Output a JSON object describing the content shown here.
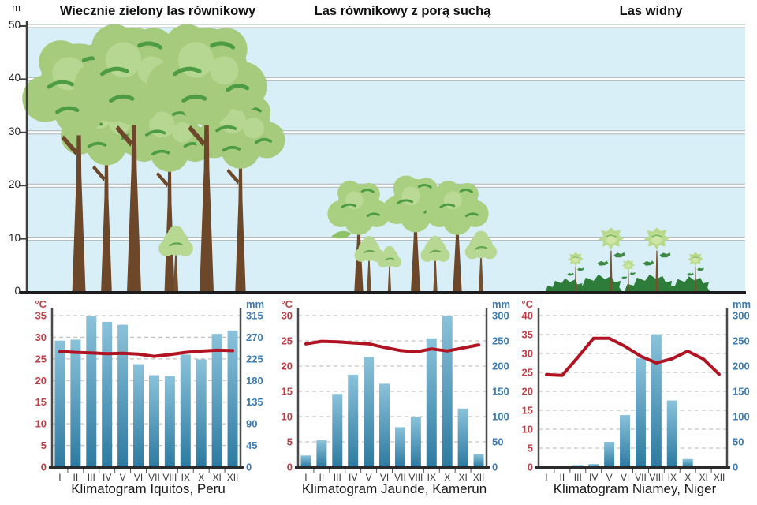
{
  "forest_profile": {
    "y_axis": {
      "unit": "m",
      "ticks": [
        50,
        40,
        30,
        20,
        10,
        0
      ]
    },
    "sections": [
      {
        "title": "Wiecznie zielony las równikowy"
      },
      {
        "title": "Las równikowy z porą suchą"
      },
      {
        "title": "Las widny"
      }
    ]
  },
  "chart_data": [
    {
      "type": "bar",
      "caption": "Klimatogram Iquitos, Peru",
      "months": [
        "I",
        "II",
        "III",
        "IV",
        "V",
        "VI",
        "VII",
        "VIII",
        "IX",
        "X",
        "XI",
        "XII"
      ],
      "temp_axis": {
        "label": "°C",
        "max": 35,
        "ticks": [
          35,
          30,
          25,
          20,
          15,
          10,
          5,
          0
        ]
      },
      "precip_axis": {
        "label": "mm",
        "max": 315,
        "ticks": [
          315,
          270,
          225,
          180,
          135,
          90,
          45,
          0
        ]
      },
      "series": [
        {
          "name": "precipitation_mm",
          "type": "bar",
          "values": [
            263,
            265,
            314,
            302,
            296,
            214,
            191,
            189,
            234,
            224,
            277,
            284
          ]
        },
        {
          "name": "temperature_c",
          "type": "line",
          "values": [
            26.7,
            26.5,
            26.4,
            26.2,
            26.3,
            26.1,
            25.6,
            26.0,
            26.5,
            26.8,
            27.0,
            26.9
          ]
        }
      ]
    },
    {
      "type": "bar",
      "caption": "Klimatogram Jaunde, Kamerun",
      "months": [
        "I",
        "II",
        "III",
        "IV",
        "V",
        "VI",
        "VII",
        "VIII",
        "IX",
        "X",
        "XI",
        "XII"
      ],
      "temp_axis": {
        "label": "°C",
        "max": 30,
        "ticks": [
          30,
          25,
          20,
          15,
          10,
          5,
          0
        ]
      },
      "precip_axis": {
        "label": "mm",
        "max": 300,
        "ticks": [
          300,
          250,
          200,
          150,
          100,
          50,
          0
        ]
      },
      "series": [
        {
          "name": "precipitation_mm",
          "type": "bar",
          "values": [
            23,
            53,
            145,
            183,
            218,
            165,
            79,
            100,
            255,
            300,
            116,
            25
          ]
        },
        {
          "name": "temperature_c",
          "type": "line",
          "values": [
            24.4,
            24.9,
            24.8,
            24.6,
            24.4,
            23.7,
            23.1,
            22.8,
            23.4,
            23.0,
            23.6,
            24.2
          ]
        }
      ]
    },
    {
      "type": "bar",
      "caption": "Klimatogram Niamey, Niger",
      "months": [
        "I",
        "II",
        "III",
        "IV",
        "V",
        "VI",
        "VII",
        "VIII",
        "IX",
        "X",
        "XI",
        "XII"
      ],
      "temp_axis": {
        "label": "°C",
        "max": 40,
        "ticks": [
          40,
          35,
          30,
          25,
          20,
          15,
          10,
          5,
          0
        ]
      },
      "precip_axis": {
        "label": "mm",
        "max": 300,
        "ticks": [
          300,
          250,
          200,
          150,
          100,
          50,
          0
        ]
      },
      "series": [
        {
          "name": "precipitation_mm",
          "type": "bar",
          "values": [
            0,
            0,
            4,
            6,
            50,
            103,
            216,
            263,
            132,
            16,
            0,
            0
          ]
        },
        {
          "name": "temperature_c",
          "type": "line",
          "values": [
            24.4,
            24.2,
            29.0,
            34.0,
            34.0,
            31.9,
            29.3,
            27.5,
            28.6,
            30.6,
            28.5,
            24.5
          ]
        }
      ]
    }
  ],
  "colors": {
    "sky": "#d9eff8",
    "bar_top": "#8ac2da",
    "bar_bottom": "#2d7aa1",
    "temp_line": "#b01423",
    "temp_label": "#bf3e44",
    "precip_label": "#3d7bb0",
    "grid": "#c4c4c4",
    "month_label": "#3a3a3a"
  }
}
